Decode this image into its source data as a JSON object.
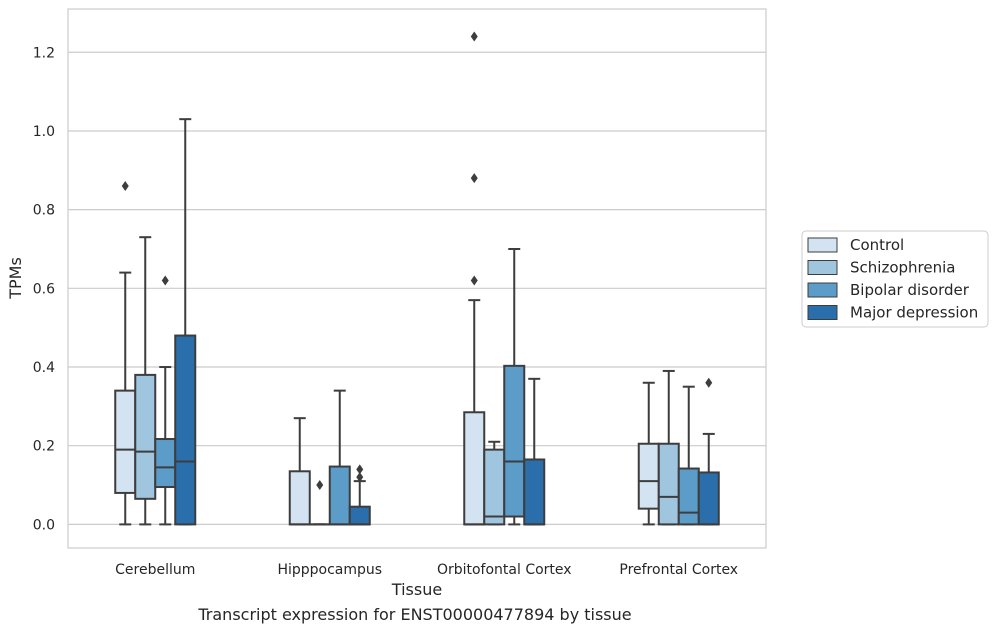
{
  "caption": "Transcript expression for ENST00000477894 by tissue",
  "chart_data": {
    "type": "box",
    "xlabel": "Tissue",
    "ylabel": "TPMs",
    "ylim": [
      -0.06,
      1.31
    ],
    "yticks": [
      0.0,
      0.2,
      0.4,
      0.6,
      0.8,
      1.0,
      1.2
    ],
    "ytick_labels": [
      "0.0",
      "0.2",
      "0.4",
      "0.6",
      "0.8",
      "1.0",
      "1.2"
    ],
    "grid": "horizontal",
    "legend_position": "right",
    "categories": [
      "Cerebellum",
      "Hipppocampus",
      "Orbitofontal Cortex",
      "Prefrontal Cortex"
    ],
    "series": [
      {
        "name": "Control",
        "color": "#d4e3f2",
        "boxes": [
          {
            "whislo": 0.0,
            "q1": 0.08,
            "med": 0.19,
            "q3": 0.34,
            "whishi": 0.64,
            "fliers": [
              0.86
            ]
          },
          {
            "whislo": 0.0,
            "q1": 0.0,
            "med": 0.0,
            "q3": 0.135,
            "whishi": 0.27,
            "fliers": []
          },
          {
            "whislo": 0.0,
            "q1": 0.0,
            "med": 0.0,
            "q3": 0.285,
            "whishi": 0.57,
            "fliers": [
              0.62,
              0.88,
              1.24
            ]
          },
          {
            "whislo": 0.0,
            "q1": 0.04,
            "med": 0.11,
            "q3": 0.205,
            "whishi": 0.36,
            "fliers": []
          }
        ]
      },
      {
        "name": "Schizophrenia",
        "color": "#9fc5df",
        "boxes": [
          {
            "whislo": 0.0,
            "q1": 0.065,
            "med": 0.185,
            "q3": 0.38,
            "whishi": 0.73,
            "fliers": []
          },
          {
            "whislo": 0.0,
            "q1": 0.0,
            "med": 0.0,
            "q3": 0.0,
            "whishi": 0.0,
            "fliers": [
              0.1
            ]
          },
          {
            "whislo": 0.0,
            "q1": 0.0,
            "med": 0.02,
            "q3": 0.19,
            "whishi": 0.21,
            "fliers": []
          },
          {
            "whislo": 0.0,
            "q1": 0.0,
            "med": 0.07,
            "q3": 0.205,
            "whishi": 0.39,
            "fliers": []
          }
        ]
      },
      {
        "name": "Bipolar disorder",
        "color": "#5b9cc8",
        "boxes": [
          {
            "whislo": 0.0,
            "q1": 0.095,
            "med": 0.145,
            "q3": 0.217,
            "whishi": 0.4,
            "fliers": [
              0.62
            ]
          },
          {
            "whislo": 0.0,
            "q1": 0.0,
            "med": 0.0,
            "q3": 0.147,
            "whishi": 0.34,
            "fliers": []
          },
          {
            "whislo": 0.0,
            "q1": 0.02,
            "med": 0.16,
            "q3": 0.403,
            "whishi": 0.7,
            "fliers": []
          },
          {
            "whislo": 0.0,
            "q1": 0.0,
            "med": 0.03,
            "q3": 0.142,
            "whishi": 0.35,
            "fliers": []
          }
        ]
      },
      {
        "name": "Major depression",
        "color": "#2a6fac",
        "boxes": [
          {
            "whislo": 0.0,
            "q1": 0.0,
            "med": 0.16,
            "q3": 0.48,
            "whishi": 1.03,
            "fliers": []
          },
          {
            "whislo": 0.0,
            "q1": 0.0,
            "med": 0.0,
            "q3": 0.045,
            "whishi": 0.11,
            "fliers": [
              0.12,
              0.14
            ]
          },
          {
            "whislo": 0.0,
            "q1": 0.0,
            "med": 0.0,
            "q3": 0.165,
            "whishi": 0.37,
            "fliers": []
          },
          {
            "whislo": 0.0,
            "q1": 0.0,
            "med": 0.0,
            "q3": 0.132,
            "whishi": 0.23,
            "fliers": [
              0.36
            ]
          }
        ]
      }
    ]
  }
}
